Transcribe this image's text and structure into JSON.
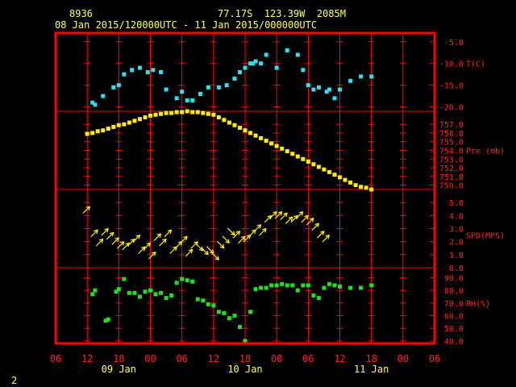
{
  "header": {
    "station": "8936",
    "location": "77.17S  123.39W  2085M",
    "period": "08 Jan 2015/120000UTC - 11 Jan 2015/000000UTC",
    "page_number": "2"
  },
  "colors": {
    "frame": "#ff0000",
    "grid": "#ff0000",
    "temperature": "#33ddee",
    "pressure": "#ffee00",
    "wind": "#ffee00",
    "humidity": "#22dd22",
    "header_text": "#ffff66",
    "axis_text": "#ff2222"
  },
  "chart_data": {
    "type": "scatter",
    "x_ticks": [
      "06",
      "12",
      "18",
      "00",
      "06",
      "12",
      "18",
      "00",
      "06",
      "12",
      "18",
      "00",
      "06"
    ],
    "date_labels": [
      {
        "hour": 42,
        "label": "09 Jan"
      },
      {
        "hour": 66,
        "label": "10 Jan"
      },
      {
        "hour": 90,
        "label": "11 Jan"
      }
    ],
    "x_range_hours": [
      30,
      102
    ],
    "panels": [
      {
        "id": "temperature",
        "label": "T(C)",
        "ylim": [
          -21,
          -3
        ],
        "ticks": [
          "-5.0",
          "-10.0",
          "-15.0",
          "-20.0"
        ],
        "tick_values": [
          -5,
          -10,
          -15,
          -20
        ],
        "x": [
          37,
          37.5,
          39,
          41,
          42,
          43,
          44.5,
          46,
          47.5,
          48.5,
          50,
          51,
          53,
          54,
          55,
          56,
          57.5,
          59,
          61,
          62.5,
          64,
          65,
          66,
          67,
          67.5,
          68,
          69,
          70,
          72,
          74,
          76,
          77,
          78,
          79,
          80,
          81.5,
          82,
          83,
          84,
          86,
          88,
          90
        ],
        "y": [
          -19,
          -19.5,
          -17.5,
          -15.5,
          -15,
          -12.5,
          -11.5,
          -11,
          -12,
          -11.5,
          -12,
          -16,
          -18,
          -16.5,
          -18.5,
          -18.5,
          -17,
          -15.5,
          -15.5,
          -15,
          -13.5,
          -12,
          -11,
          -10,
          -10,
          -9.5,
          -10,
          -8,
          -11,
          -7,
          -8,
          -11.5,
          -15,
          -16,
          -15.5,
          -16.5,
          -16,
          -18,
          -16,
          -14,
          -13,
          -13
        ]
      },
      {
        "id": "pressure",
        "label": "Pre (mb)",
        "ylim": [
          749.5,
          758.5
        ],
        "ticks": [
          "757.0",
          "756.0",
          "755.0",
          "754.0",
          "753.0",
          "752.0",
          "751.0",
          "750.0"
        ],
        "tick_values": [
          757,
          756,
          755,
          754,
          753,
          752,
          751,
          750
        ],
        "x": [
          36,
          37,
          38,
          39,
          40,
          41,
          42,
          43,
          44,
          45,
          46,
          47,
          48,
          49,
          50,
          51,
          52,
          53,
          54,
          55,
          56,
          57,
          58,
          59,
          60,
          61,
          62,
          63,
          64,
          65,
          66,
          67,
          68,
          69,
          70,
          71,
          72,
          73,
          74,
          75,
          76,
          77,
          78,
          79,
          80,
          81,
          82,
          83,
          84,
          85,
          86,
          87,
          88,
          89,
          90
        ],
        "y": [
          755.9,
          756.0,
          756.2,
          756.3,
          756.5,
          756.7,
          756.9,
          757.0,
          757.2,
          757.4,
          757.6,
          757.8,
          758.0,
          758.1,
          758.2,
          758.3,
          758.3,
          758.4,
          758.4,
          758.5,
          758.4,
          758.4,
          758.3,
          758.2,
          758.1,
          757.8,
          757.5,
          757.2,
          756.9,
          756.6,
          756.3,
          756.0,
          755.7,
          755.4,
          755.1,
          754.8,
          754.5,
          754.2,
          753.9,
          753.6,
          753.3,
          753.0,
          752.7,
          752.4,
          752.1,
          751.8,
          751.5,
          751.2,
          750.9,
          750.6,
          750.3,
          750.0,
          749.8,
          749.7,
          749.5
        ]
      },
      {
        "id": "wind",
        "label": "SPD(MPS)",
        "ylim": [
          0,
          6
        ],
        "ticks": [
          "5.0",
          "4.0",
          "3.0",
          "2.0",
          "1.0",
          "0.0"
        ],
        "tick_values": [
          5,
          4,
          3,
          2,
          1,
          0
        ],
        "x": [
          36.5,
          38,
          39,
          40,
          41,
          42,
          43,
          44,
          45,
          46,
          47,
          48,
          49,
          50,
          51,
          52,
          53,
          54,
          55,
          56,
          57,
          58,
          59,
          60,
          61,
          62,
          63,
          64,
          65,
          66,
          67,
          68,
          69,
          70,
          71,
          72,
          73,
          74,
          75,
          76,
          77,
          78,
          79,
          80,
          81,
          82
        ],
        "y": [
          4.7,
          2.9,
          2.2,
          3.0,
          2.7,
          2.3,
          2.0,
          1.9,
          2.2,
          2.5,
          1.6,
          1.9,
          1.2,
          2.6,
          2.2,
          2.9,
          1.6,
          2.0,
          2.4,
          1.4,
          2.0,
          1.3,
          1.0,
          1.1,
          0.6,
          1.5,
          1.9,
          2.5,
          2.8,
          2.4,
          2.5,
          2.9,
          3.3,
          3.0,
          4.0,
          4.3,
          4.3,
          4.2,
          3.9,
          4.0,
          4.3,
          4.0,
          3.8,
          3.4,
          2.8,
          2.5
        ],
        "direction_deg": [
          225,
          225,
          225,
          225,
          225,
          225,
          225,
          225,
          225,
          225,
          225,
          225,
          225,
          225,
          225,
          225,
          225,
          225,
          225,
          225,
          225,
          315,
          315,
          315,
          315,
          315,
          315,
          315,
          225,
          225,
          225,
          225,
          225,
          225,
          225,
          225,
          225,
          225,
          225,
          225,
          225,
          225,
          225,
          225,
          225,
          225
        ]
      },
      {
        "id": "humidity",
        "label": "RH(%)",
        "ylim": [
          38,
          98
        ],
        "ticks": [
          "90.0",
          "80.0",
          "70.0",
          "60.0",
          "50.0",
          "40.0"
        ],
        "tick_values": [
          90,
          80,
          70,
          60,
          50,
          40
        ],
        "x": [
          37,
          37.5,
          39.5,
          40,
          41.5,
          42,
          43,
          44,
          45,
          46,
          47,
          48,
          49,
          50,
          51,
          52,
          53,
          54,
          55,
          56,
          57,
          58,
          59,
          60,
          61,
          62,
          63,
          64,
          65,
          66,
          67,
          68,
          69,
          70,
          71,
          72,
          73,
          74,
          75,
          76,
          77,
          78,
          79,
          80,
          81,
          82,
          83,
          84,
          86,
          88,
          90
        ],
        "y": [
          77,
          80,
          56,
          57,
          79,
          81,
          89,
          78,
          78,
          75,
          79,
          80,
          77,
          78,
          74,
          76,
          86,
          89,
          88,
          87,
          73,
          72,
          69,
          68,
          63,
          62,
          58,
          60,
          51,
          40,
          63,
          81,
          82,
          82,
          84,
          84,
          85,
          84,
          84,
          80,
          84,
          84,
          76,
          74,
          82,
          85,
          84,
          83,
          82,
          82,
          84
        ]
      }
    ],
    "xlabel": "",
    "grid": true
  }
}
